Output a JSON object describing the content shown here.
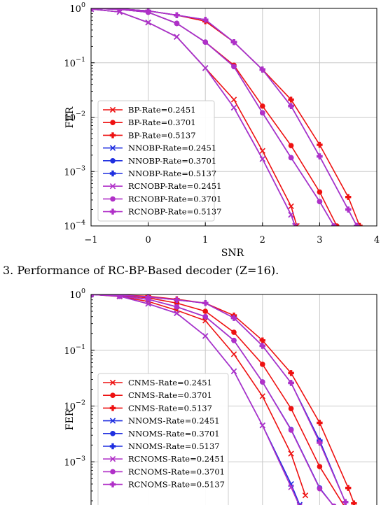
{
  "caption": "3.   Performance of RC-BP-Based decoder (Z=16).",
  "chart_data": [
    {
      "type": "line",
      "title": "",
      "xlabel": "SNR",
      "ylabel": "FER",
      "xlim": [
        -1,
        4
      ],
      "ylim": [
        0.0001,
        1
      ],
      "yscale": "log",
      "grid": true,
      "legend": "lower-left",
      "x_ticks": [
        "−1",
        "0",
        "1",
        "2",
        "3",
        "4"
      ],
      "y_ticks": [
        {
          "base": "10",
          "exp": "0"
        },
        {
          "base": "10",
          "exp": "−1"
        },
        {
          "base": "10",
          "exp": "−2"
        },
        {
          "base": "10",
          "exp": "−3"
        },
        {
          "base": "10",
          "exp": "−4"
        }
      ],
      "series": [
        {
          "name": "BP-Rate=0.2451",
          "color": "#ee1111",
          "marker": "x",
          "x": [
            -1,
            -0.5,
            0,
            0.5,
            1,
            1.5,
            2,
            2.5,
            2.6
          ],
          "y": [
            0.97,
            0.86,
            0.55,
            0.3,
            0.08,
            0.021,
            0.0024,
            0.00023,
            0.0001
          ]
        },
        {
          "name": "BP-Rate=0.3701",
          "color": "#ee1111",
          "marker": "o",
          "x": [
            -1,
            -0.5,
            0,
            0.5,
            1,
            1.5,
            2,
            2.5,
            3,
            3.3
          ],
          "y": [
            1.0,
            0.96,
            0.85,
            0.53,
            0.24,
            0.09,
            0.016,
            0.003,
            0.00042,
            0.0001
          ]
        },
        {
          "name": "BP-Rate=0.5137",
          "color": "#ee1111",
          "marker": "P",
          "x": [
            -1,
            -0.5,
            0,
            0.5,
            1,
            1.5,
            2,
            2.5,
            3,
            3.5,
            3.7
          ],
          "y": [
            1.0,
            0.98,
            0.9,
            0.75,
            0.58,
            0.24,
            0.075,
            0.021,
            0.0031,
            0.00034,
            0.0001
          ]
        },
        {
          "name": "NNOBP-Rate=0.2451",
          "color": "#1f2fe0",
          "marker": "x",
          "x": [
            -1,
            -0.5,
            0,
            0.5,
            1,
            1.5,
            2,
            2.5,
            2.57
          ],
          "y": [
            0.97,
            0.86,
            0.55,
            0.3,
            0.08,
            0.015,
            0.0017,
            0.00016,
            0.0001
          ]
        },
        {
          "name": "NNOBP-Rate=0.3701",
          "color": "#1f2fe0",
          "marker": "o",
          "x": [
            -1,
            -0.5,
            0,
            0.5,
            1,
            1.5,
            2,
            2.5,
            3,
            3.25
          ],
          "y": [
            1.0,
            0.96,
            0.85,
            0.53,
            0.24,
            0.085,
            0.012,
            0.0018,
            0.00028,
            0.0001
          ]
        },
        {
          "name": "NNOBP-Rate=0.5137",
          "color": "#1f2fe0",
          "marker": "P",
          "x": [
            -1,
            -0.5,
            0,
            0.5,
            1,
            1.5,
            2,
            2.5,
            3,
            3.5,
            3.65
          ],
          "y": [
            1.0,
            0.98,
            0.9,
            0.75,
            0.62,
            0.24,
            0.075,
            0.016,
            0.0019,
            0.0002,
            0.0001
          ]
        },
        {
          "name": "RCNOBP-Rate=0.2451",
          "color": "#b030c8",
          "marker": "x",
          "x": [
            -1,
            -0.5,
            0,
            0.5,
            1,
            1.5,
            2,
            2.5,
            2.57
          ],
          "y": [
            0.97,
            0.86,
            0.55,
            0.3,
            0.08,
            0.015,
            0.0017,
            0.00016,
            0.0001
          ]
        },
        {
          "name": "RCNOBP-Rate=0.3701",
          "color": "#b030c8",
          "marker": "o",
          "x": [
            -1,
            -0.5,
            0,
            0.5,
            1,
            1.5,
            2,
            2.5,
            3,
            3.25
          ],
          "y": [
            1.0,
            0.96,
            0.85,
            0.53,
            0.24,
            0.085,
            0.012,
            0.0018,
            0.00028,
            0.0001
          ]
        },
        {
          "name": "RCNOBP-Rate=0.5137",
          "color": "#b030c8",
          "marker": "P",
          "x": [
            -1,
            -0.5,
            0,
            0.5,
            1,
            1.5,
            2,
            2.5,
            3,
            3.5,
            3.65
          ],
          "y": [
            1.0,
            0.98,
            0.9,
            0.75,
            0.62,
            0.24,
            0.075,
            0.016,
            0.0019,
            0.0002,
            0.0001
          ]
        }
      ]
    },
    {
      "type": "line",
      "title": "",
      "xlabel": "",
      "ylabel": "FER",
      "xlim": [
        -1,
        4
      ],
      "ylim": [
        0.0001,
        1
      ],
      "yscale": "log",
      "grid": true,
      "legend": "lower-left",
      "x_ticks": [],
      "y_ticks": [
        {
          "base": "10",
          "exp": "0"
        },
        {
          "base": "10",
          "exp": "−1"
        },
        {
          "base": "10",
          "exp": "−2"
        },
        {
          "base": "10",
          "exp": "−3"
        }
      ],
      "series": [
        {
          "name": "CNMS-Rate=0.2451",
          "color": "#ee1111",
          "marker": "x",
          "x": [
            -1,
            -0.5,
            0,
            0.5,
            1,
            1.5,
            2,
            2.5,
            2.75
          ],
          "y": [
            1.0,
            0.92,
            0.75,
            0.52,
            0.34,
            0.085,
            0.015,
            0.0014,
            0.00025
          ]
        },
        {
          "name": "CNMS-Rate=0.3701",
          "color": "#ee1111",
          "marker": "o",
          "x": [
            -1,
            -0.5,
            0,
            0.5,
            1,
            1.5,
            2,
            2.5,
            3,
            3.45
          ],
          "y": [
            1.0,
            0.96,
            0.87,
            0.7,
            0.5,
            0.21,
            0.056,
            0.009,
            0.00082,
            0.00015
          ]
        },
        {
          "name": "CNMS-Rate=0.5137",
          "color": "#ee1111",
          "marker": "P",
          "x": [
            -1,
            -0.5,
            0,
            0.5,
            1,
            1.5,
            2,
            2.5,
            3,
            3.5,
            3.6
          ],
          "y": [
            1.0,
            0.98,
            0.93,
            0.82,
            0.7,
            0.42,
            0.15,
            0.039,
            0.005,
            0.00034,
            0.00018
          ]
        },
        {
          "name": "NNOMS-Rate=0.2451",
          "color": "#1f2fe0",
          "marker": "x",
          "x": [
            -1,
            -0.5,
            0,
            0.5,
            1,
            1.5,
            2,
            2.5,
            2.65
          ],
          "y": [
            1.0,
            0.93,
            0.68,
            0.46,
            0.18,
            0.042,
            0.0045,
            0.0004,
            0.00017
          ]
        },
        {
          "name": "NNOMS-Rate=0.3701",
          "color": "#1f2fe0",
          "marker": "o",
          "x": [
            -1,
            -0.5,
            0,
            0.5,
            1,
            1.5,
            2,
            2.5,
            3,
            3.25
          ],
          "y": [
            1.0,
            0.93,
            0.82,
            0.6,
            0.4,
            0.15,
            0.027,
            0.0038,
            0.00034,
            0.00016
          ]
        },
        {
          "name": "NNOMS-Rate=0.5137",
          "color": "#1f2fe0",
          "marker": "P",
          "x": [
            -1,
            -0.5,
            0,
            0.5,
            1,
            1.5,
            2,
            2.5,
            3,
            3.45
          ],
          "y": [
            1.0,
            0.98,
            0.9,
            0.8,
            0.7,
            0.38,
            0.12,
            0.026,
            0.0024,
            0.00019
          ]
        },
        {
          "name": "RCNOMS-Rate=0.2451",
          "color": "#b030c8",
          "marker": "x",
          "x": [
            -1,
            -0.5,
            0,
            0.5,
            1,
            1.5,
            2,
            2.5,
            2.65
          ],
          "y": [
            1.0,
            0.93,
            0.68,
            0.46,
            0.18,
            0.042,
            0.0045,
            0.00035,
            0.00016
          ]
        },
        {
          "name": "RCNOMS-Rate=0.3701",
          "color": "#b030c8",
          "marker": "o",
          "x": [
            -1,
            -0.5,
            0,
            0.5,
            1,
            1.5,
            2,
            2.5,
            3,
            3.25
          ],
          "y": [
            1.0,
            0.93,
            0.82,
            0.6,
            0.4,
            0.15,
            0.027,
            0.0037,
            0.00033,
            0.00016
          ]
        },
        {
          "name": "RCNOMS-Rate=0.5137",
          "color": "#b030c8",
          "marker": "P",
          "x": [
            -1,
            -0.5,
            0,
            0.5,
            1,
            1.5,
            2,
            2.5,
            3,
            3.45
          ],
          "y": [
            1.0,
            0.98,
            0.9,
            0.8,
            0.7,
            0.38,
            0.12,
            0.026,
            0.0022,
            0.00019
          ]
        }
      ]
    }
  ]
}
